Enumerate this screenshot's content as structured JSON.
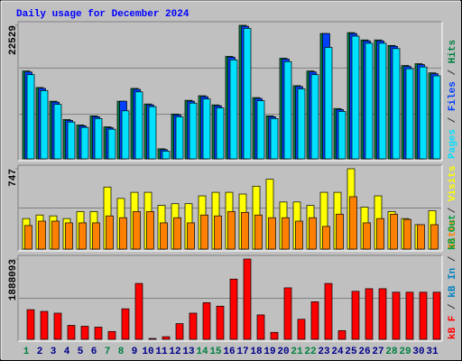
{
  "chart_data": [
    {
      "type": "bar",
      "title": "Daily usage for December 2024",
      "separator": "/",
      "ylim": [
        0,
        22529
      ],
      "yticks": [
        22529
      ],
      "series": [
        {
          "name": "Pages",
          "color": "#00e0ff",
          "values": [
            14200,
            11500,
            9200,
            6200,
            5300,
            6800,
            5000,
            8100,
            11300,
            8800,
            1300,
            7100,
            9400,
            10100,
            8600,
            16700,
            22000,
            9800,
            6800,
            16400,
            11800,
            14200,
            18800,
            8000,
            20700,
            19500,
            19500,
            18600,
            15200,
            15500,
            14000
          ]
        },
        {
          "name": "Files",
          "color": "#0040ff",
          "values": [
            14650,
            11880,
            9570,
            6480,
            5560,
            7100,
            5250,
            9721,
            11730,
            9100,
            1550,
            7410,
            9720,
            10490,
            8950,
            17130,
            22370,
            10180,
            7100,
            16820,
            12190,
            14660,
            21139,
            8330,
            21140,
            19900,
            19900,
            18980,
            15580,
            15890,
            14350
          ]
        },
        {
          "name": "Hits",
          "color": "#008040",
          "values": [
            14813,
            12035,
            9721,
            6635,
            5709,
            7252,
            5401,
            9721,
            11881,
            9258,
            1697,
            7561,
            9875,
            10647,
            9104,
            17282,
            22529,
            10338,
            7252,
            16973,
            12344,
            14813,
            21139,
            8487,
            21294,
            20059,
            20059,
            19133,
            15739,
            16047,
            14504
          ]
        }
      ]
    },
    {
      "type": "bar",
      "separator": "/",
      "ylim": [
        0,
        747
      ],
      "yticks": [
        747
      ],
      "series": [
        {
          "name": "Sites",
          "color": "#ff8000",
          "values": [
            219,
            260,
            260,
            244,
            244,
            244,
            309,
            292,
            349,
            349,
            244,
            292,
            244,
            317,
            309,
            349,
            341,
            317,
            292,
            292,
            260,
            292,
            211,
            325,
            487,
            244,
            284,
            325,
            276,
            227,
            227
          ]
        },
        {
          "name": "Visits",
          "color": "#ffff00",
          "values": [
            284,
            317,
            309,
            284,
            349,
            349,
            577,
            471,
            528,
            528,
            406,
            422,
            422,
            495,
            528,
            528,
            512,
            585,
            650,
            438,
            438,
            406,
            528,
            528,
            747,
            390,
            495,
            349,
            284,
            227,
            357
          ]
        }
      ]
    },
    {
      "type": "bar",
      "separator": "/",
      "ylim": [
        0,
        1888093
      ],
      "yticks": [
        1888093
      ],
      "categories": [
        "1",
        "2",
        "3",
        "4",
        "5",
        "6",
        "7",
        "8",
        "9",
        "10",
        "11",
        "12",
        "13",
        "14",
        "15",
        "16",
        "17",
        "18",
        "19",
        "20",
        "21",
        "22",
        "23",
        "24",
        "25",
        "26",
        "27",
        "28",
        "29",
        "30",
        "31"
      ],
      "category_colors": [
        "#008040",
        "#00008b",
        "#00008b",
        "#00008b",
        "#00008b",
        "#00008b",
        "#008040",
        "#008040",
        "#00008b",
        "#00008b",
        "#00008b",
        "#00008b",
        "#00008b",
        "#008040",
        "#008040",
        "#00008b",
        "#00008b",
        "#00008b",
        "#00008b",
        "#00008b",
        "#008040",
        "#008040",
        "#00008b",
        "#00008b",
        "#00008b",
        "#00008b",
        "#00008b",
        "#008040",
        "#008040",
        "#00008b",
        "#00008b"
      ],
      "series": [
        {
          "name": "kB F",
          "color": "#ff0000",
          "values": [
            697782,
            656736,
            615690,
            328368,
            307845,
            287322,
            184707,
            718305,
            1313472,
            20523,
            61569,
            369414,
            615690,
            861966,
            779874,
            1416087,
            1888093,
            574644,
            164184,
            1210857,
            472029,
            882489,
            1313472,
            205230,
            1128765,
            1190334,
            1190334,
            1108242,
            1108242,
            1108242,
            1108242
          ]
        },
        {
          "name": "kB In",
          "color": "#0080c0",
          "values": [
            0,
            0,
            0,
            0,
            0,
            0,
            0,
            0,
            0,
            0,
            0,
            0,
            0,
            0,
            0,
            0,
            0,
            0,
            0,
            0,
            0,
            0,
            0,
            0,
            0,
            0,
            0,
            0,
            0,
            0,
            0
          ]
        },
        {
          "name": "kB Out",
          "color": "#00a040",
          "values": [
            0,
            0,
            0,
            0,
            0,
            0,
            0,
            0,
            0,
            0,
            0,
            0,
            0,
            0,
            0,
            0,
            0,
            0,
            0,
            0,
            0,
            0,
            0,
            0,
            0,
            0,
            0,
            0,
            0,
            0,
            0
          ]
        }
      ]
    }
  ]
}
